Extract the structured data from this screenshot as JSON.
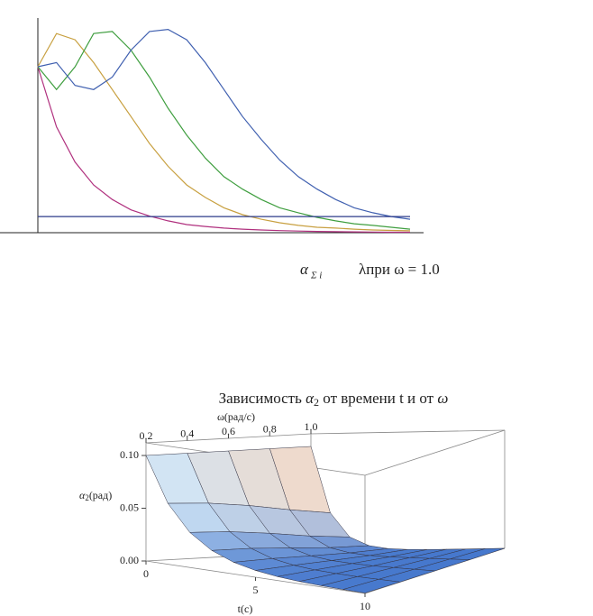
{
  "chart_data": [
    {
      "type": "line",
      "x": [
        0,
        0.5,
        1,
        1.5,
        2,
        2.5,
        3,
        3.5,
        4,
        4.5,
        5,
        5.5,
        6,
        6.5,
        7,
        7.5,
        8,
        8.5,
        9,
        9.5,
        10
      ],
      "xlim": [
        0,
        10
      ],
      "ylim": [
        0,
        1
      ],
      "series": [
        {
          "color": "#b0307e",
          "values": [
            0.8,
            0.51,
            0.34,
            0.23,
            0.16,
            0.11,
            0.08,
            0.057,
            0.039,
            0.03,
            0.022,
            0.017,
            0.013,
            0.01,
            0.008,
            0.006,
            0.005,
            0.004,
            0.003,
            0.002,
            0.002
          ]
        },
        {
          "color": "#c8a040",
          "values": [
            0.8,
            0.96,
            0.93,
            0.82,
            0.69,
            0.56,
            0.43,
            0.32,
            0.23,
            0.17,
            0.12,
            0.087,
            0.065,
            0.048,
            0.035,
            0.026,
            0.022,
            0.017,
            0.013,
            0.011,
            0.009
          ]
        },
        {
          "color": "#3f9e3f",
          "values": [
            0.8,
            0.69,
            0.8,
            0.96,
            0.97,
            0.88,
            0.75,
            0.6,
            0.47,
            0.36,
            0.27,
            0.21,
            0.16,
            0.12,
            0.096,
            0.074,
            0.057,
            0.043,
            0.035,
            0.026,
            0.017
          ]
        },
        {
          "color": "#4060b0",
          "values": [
            0.8,
            0.82,
            0.71,
            0.69,
            0.75,
            0.88,
            0.97,
            0.98,
            0.93,
            0.82,
            0.69,
            0.56,
            0.45,
            0.35,
            0.27,
            0.21,
            0.16,
            0.12,
            0.096,
            0.078,
            0.065
          ]
        },
        {
          "color": "#2b3a8a",
          "values": [
            0.078,
            0.078,
            0.078,
            0.078,
            0.078,
            0.078,
            0.078,
            0.078,
            0.078,
            0.078,
            0.078,
            0.078,
            0.078,
            0.078,
            0.078,
            0.078,
            0.078,
            0.078,
            0.078,
            0.078,
            0.078
          ]
        }
      ]
    },
    {
      "type": "surface",
      "title": [
        "Зависимость ",
        "α",
        "2",
        " от времени t и от ",
        "ω"
      ],
      "omega_label": "ω(рад/с)",
      "z_label": [
        "α",
        "2",
        "(рад)"
      ],
      "t_label": "t(c)",
      "t": [
        0,
        1,
        2,
        3,
        4,
        5,
        6,
        7,
        8,
        9,
        10
      ],
      "omega": [
        0.2,
        0.4,
        0.6,
        0.8,
        1.0
      ],
      "z": [
        [
          0.1,
          0.1,
          0.1,
          0.1,
          0.1
        ],
        [
          0.0577,
          0.0549,
          0.0497,
          0.0427,
          0.0368
        ],
        [
          0.0333,
          0.0301,
          0.0247,
          0.0183,
          0.0135
        ],
        [
          0.0192,
          0.0165,
          0.0122,
          0.0078,
          0.005
        ],
        [
          0.0111,
          0.0091,
          0.0061,
          0.0033,
          0.0018
        ],
        [
          0.0064,
          0.005,
          0.003,
          0.0014,
          0.0007
        ],
        [
          0.0037,
          0.0027,
          0.0015,
          0.0006,
          0.0002
        ],
        [
          0.0021,
          0.0015,
          0.0007,
          0.0003,
          0.0001
        ],
        [
          0.0012,
          0.0008,
          0.0004,
          0.0001,
          0
        ],
        [
          0.0007,
          0.0005,
          0.0002,
          0,
          0
        ],
        [
          0.0004,
          0.0002,
          0.0001,
          0,
          0
        ]
      ],
      "tlim": [
        0,
        10
      ],
      "omegalim": [
        0.2,
        1
      ],
      "zlim": [
        0,
        0.112
      ],
      "tticks": [
        0,
        5,
        10
      ],
      "omegaticks": [
        0.2,
        0.4,
        0.6,
        0.8,
        {
          "value": 1,
          "label": "1.0"
        }
      ],
      "zticks": [
        {
          "value": 0,
          "label": "0.00"
        },
        0.05,
        {
          "value": 0.1,
          "label": "0.10"
        }
      ]
    }
  ],
  "caption": [
    "α",
    "Σ i",
    "λпри ω = 1.0"
  ]
}
